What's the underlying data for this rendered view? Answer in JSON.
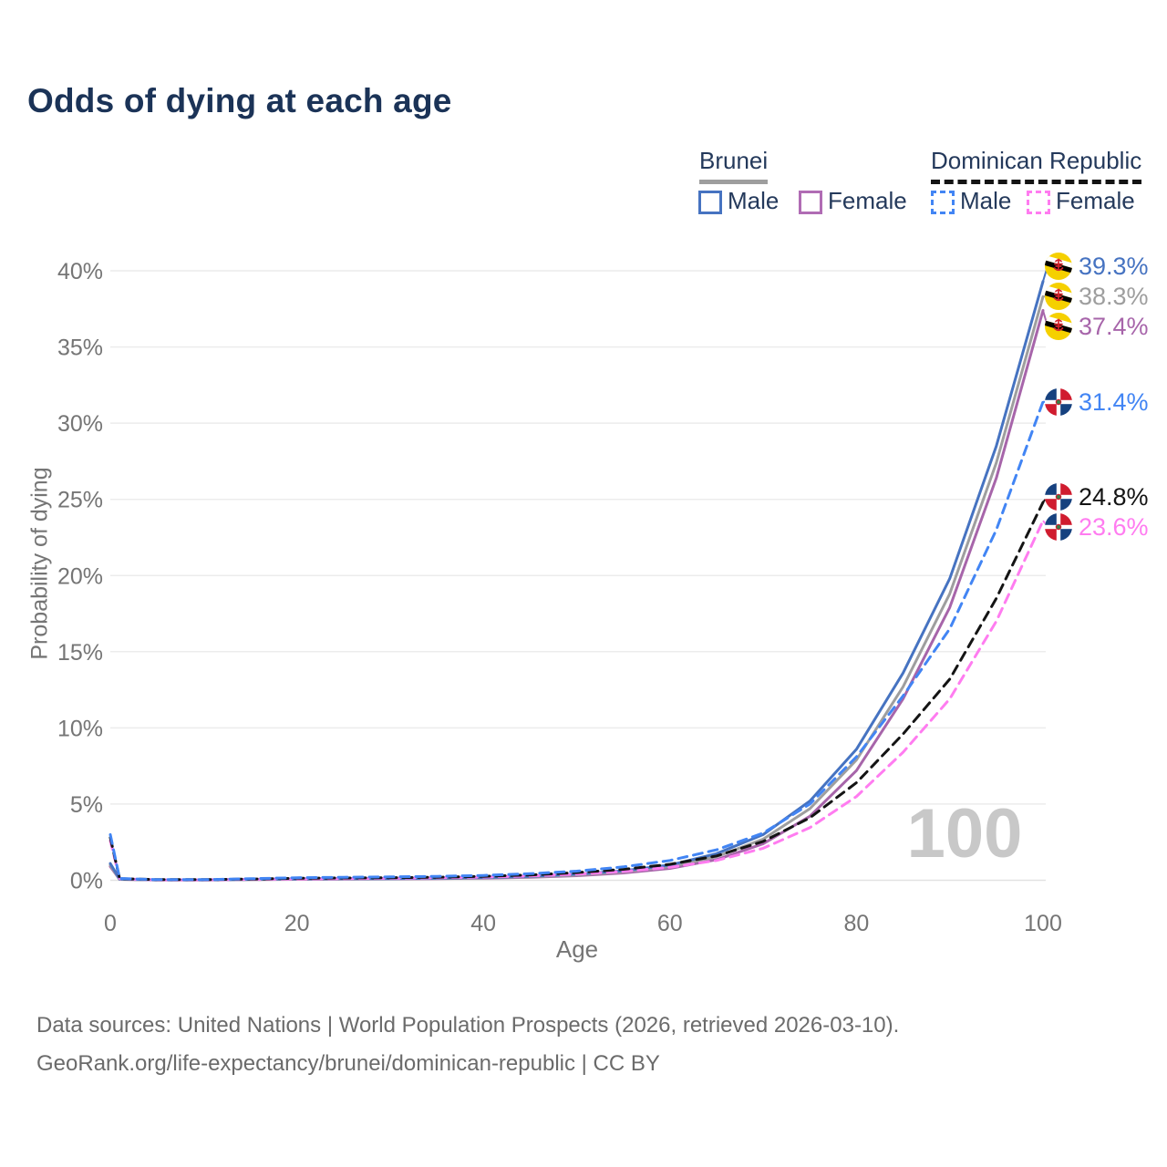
{
  "title": "Odds of dying at each age",
  "legend": {
    "groups": [
      {
        "country": "Brunei",
        "line_style": "solid",
        "underline_color": "#9e9e9e",
        "items": [
          {
            "label": "Male",
            "color": "#4673c1"
          },
          {
            "label": "Female",
            "color": "#b06cb4"
          }
        ]
      },
      {
        "country": "Dominican Republic",
        "line_style": "dashed",
        "underline_color": "#141414",
        "items": [
          {
            "label": "Male",
            "color": "#4285f4"
          },
          {
            "label": "Female",
            "color": "#ff7cf0"
          }
        ]
      }
    ]
  },
  "chart_data": {
    "type": "line",
    "title": "Odds of dying at each age",
    "xlabel": "Age",
    "ylabel": "Probability of dying",
    "xlim": [
      0,
      100
    ],
    "ylim": [
      0,
      40
    ],
    "x_ticks": [
      0,
      20,
      40,
      60,
      80,
      100
    ],
    "y_ticks": [
      "0%",
      "5%",
      "10%",
      "15%",
      "20%",
      "25%",
      "30%",
      "35%",
      "40%"
    ],
    "grid": "horizontal",
    "age_indicator": "100",
    "x": [
      0,
      1,
      5,
      10,
      15,
      20,
      25,
      30,
      35,
      40,
      45,
      50,
      55,
      60,
      65,
      70,
      75,
      80,
      85,
      90,
      95,
      100
    ],
    "series": [
      {
        "id": "brunei-male",
        "name": "Brunei Male",
        "country": "Brunei",
        "sex": "Male",
        "color": "#4673c1",
        "dash": "solid",
        "flag": "brunei",
        "end_label": "39.3%",
        "values": [
          1.1,
          0.07,
          0.03,
          0.03,
          0.06,
          0.09,
          0.1,
          0.11,
          0.14,
          0.18,
          0.26,
          0.4,
          0.62,
          1.0,
          1.75,
          3.0,
          5.2,
          8.6,
          13.6,
          19.8,
          28.5,
          39.3
        ]
      },
      {
        "id": "brunei-both",
        "name": "Brunei (both sexes)",
        "country": "Brunei",
        "sex": "Both",
        "color": "#9e9e9e",
        "dash": "solid",
        "flag": "brunei",
        "end_label": "38.3%",
        "values": [
          1.0,
          0.06,
          0.03,
          0.03,
          0.05,
          0.08,
          0.09,
          0.1,
          0.12,
          0.16,
          0.23,
          0.35,
          0.55,
          0.9,
          1.55,
          2.7,
          4.7,
          7.9,
          12.7,
          18.8,
          27.4,
          38.3
        ]
      },
      {
        "id": "brunei-female",
        "name": "Brunei Female",
        "country": "Brunei",
        "sex": "Female",
        "color": "#a765aa",
        "dash": "solid",
        "flag": "brunei",
        "end_label": "37.4%",
        "values": [
          0.9,
          0.06,
          0.02,
          0.02,
          0.04,
          0.06,
          0.07,
          0.09,
          0.11,
          0.14,
          0.2,
          0.3,
          0.48,
          0.78,
          1.35,
          2.4,
          4.2,
          7.2,
          11.9,
          17.9,
          26.4,
          37.4
        ]
      },
      {
        "id": "dr-male",
        "name": "Dominican Republic Male",
        "country": "Dominican Republic",
        "sex": "Male",
        "color": "#4285f4",
        "dash": "dashed",
        "flag": "dr",
        "end_label": "31.4%",
        "values": [
          3.0,
          0.12,
          0.04,
          0.04,
          0.1,
          0.17,
          0.2,
          0.22,
          0.26,
          0.32,
          0.43,
          0.6,
          0.88,
          1.3,
          2.0,
          3.1,
          5.0,
          8.1,
          12.1,
          16.5,
          23.0,
          31.4
        ]
      },
      {
        "id": "dr-both",
        "name": "Dominican Republic (both sexes)",
        "country": "Dominican Republic",
        "sex": "Both",
        "color": "#141414",
        "dash": "dashed",
        "flag": "dr",
        "end_label": "24.8%",
        "values": [
          2.8,
          0.11,
          0.04,
          0.04,
          0.08,
          0.13,
          0.15,
          0.17,
          0.2,
          0.26,
          0.35,
          0.5,
          0.72,
          1.05,
          1.6,
          2.55,
          4.1,
          6.4,
          9.6,
          13.2,
          18.5,
          24.8
        ]
      },
      {
        "id": "dr-female",
        "name": "Dominican Republic Female",
        "country": "Dominican Republic",
        "sex": "Female",
        "color": "#ff7cf0",
        "dash": "dashed",
        "flag": "dr",
        "end_label": "23.6%",
        "values": [
          2.6,
          0.1,
          0.03,
          0.03,
          0.06,
          0.09,
          0.11,
          0.13,
          0.16,
          0.21,
          0.28,
          0.4,
          0.58,
          0.85,
          1.3,
          2.1,
          3.45,
          5.5,
          8.4,
          11.9,
          17.0,
          23.6
        ]
      }
    ]
  },
  "colors": {
    "title_text": "#1b3357",
    "legend_text": "#24395b",
    "axis_text": "#757575",
    "footer_text": "#6b6b6b",
    "gridline": "#ececec",
    "watermark": "#c8c8c8",
    "brunei_flag_yellow": "#f5d000",
    "brunei_flag_red": "#d6232d",
    "dr_flag_blue": "#16417f",
    "dr_flag_red": "#d01c2f"
  },
  "footer": {
    "line1": "Data sources: United Nations | World Population Prospects (2026, retrieved 2026-03-10).",
    "line2": "GeoRank.org/life-expectancy/brunei/dominican-republic | CC BY"
  }
}
